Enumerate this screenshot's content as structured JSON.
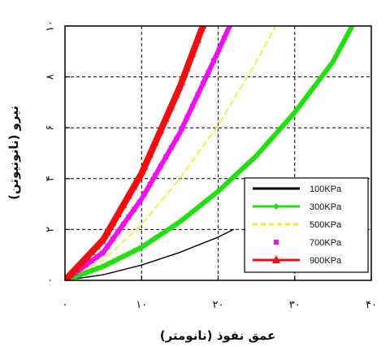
{
  "chart_data": {
    "type": "line",
    "xlabel": "عمق نفوذ (نانومتر)",
    "ylabel": "نیرو (نانونیوتن)",
    "xlim": [
      0,
      40
    ],
    "ylim": [
      0,
      10
    ],
    "x_ticks": [
      0,
      10,
      20,
      30,
      40
    ],
    "y_ticks": [
      0,
      2,
      4,
      6,
      8,
      10
    ],
    "x_tick_labels": [
      "۰",
      "۱۰",
      "۲۰",
      "۳۰",
      "۴۰"
    ],
    "y_tick_labels": [
      "۰",
      "۲",
      "۴",
      "۶",
      "۸",
      "۱۰"
    ],
    "grid": true,
    "legend_position": "bottom-right",
    "series": [
      {
        "name": "100KPa",
        "color": "#000000",
        "style": "solid",
        "marker": "none",
        "x": [
          0,
          5,
          10,
          15,
          20,
          22
        ],
        "y": [
          0,
          0.22,
          0.6,
          1.1,
          1.7,
          2.0
        ]
      },
      {
        "name": "300KPa",
        "color": "#22e010",
        "style": "solid",
        "marker": "diamond",
        "x": [
          0,
          5,
          10,
          15,
          20,
          25,
          30,
          35,
          37.5
        ],
        "y": [
          0,
          0.55,
          1.3,
          2.3,
          3.5,
          4.9,
          6.6,
          8.6,
          10
        ]
      },
      {
        "name": "500KPa",
        "color": "#f2e830",
        "style": "dashed",
        "marker": "none",
        "x": [
          0,
          5,
          10,
          15,
          20,
          25,
          27.5
        ],
        "y": [
          0,
          0.8,
          2.2,
          4.0,
          6.1,
          8.6,
          10
        ]
      },
      {
        "name": "700KPa",
        "color": "#ee10ee",
        "style": "solid",
        "marker": "square",
        "x": [
          0,
          5,
          10,
          15,
          20,
          21.5
        ],
        "y": [
          0,
          1.1,
          3.2,
          5.8,
          9.0,
          10
        ]
      },
      {
        "name": "900KPa",
        "color": "#ee1010",
        "style": "solid",
        "marker": "triangle",
        "x": [
          0,
          5,
          10,
          15,
          18
        ],
        "y": [
          0,
          1.6,
          4.2,
          7.6,
          10
        ]
      }
    ]
  }
}
